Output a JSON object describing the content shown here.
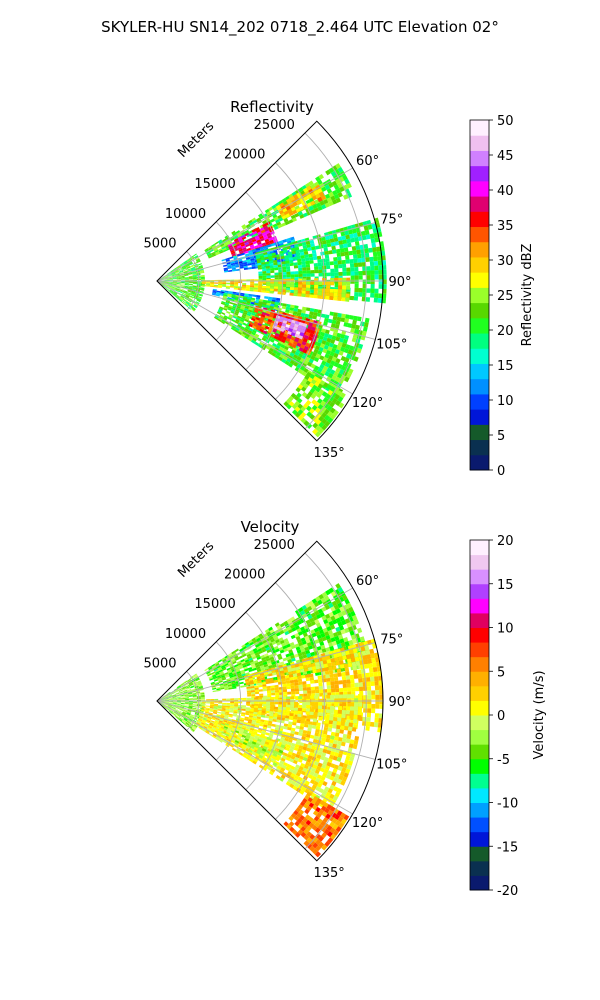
{
  "figure": {
    "suptitle": "SKYLER-HU  SN14_202  0718_2.464 UTC Elevation 02°"
  },
  "chart_data": [
    {
      "type": "heatmap",
      "subtype": "polar-sector-ppi",
      "title": "Reflectivity",
      "range_label": "Meters",
      "range_ticks": [
        "5000",
        "10000",
        "15000",
        "20000",
        "25000"
      ],
      "range_max": 27000,
      "azimuth_range_deg": [
        45,
        135
      ],
      "azimuth_ticks": [
        "60°",
        "75°",
        "90°",
        "105°",
        "120°",
        "135°"
      ],
      "grid": true,
      "colorbar": {
        "label": "Reflectivity dBZ",
        "min": 0,
        "max": 50,
        "ticks": [
          "0",
          "5",
          "10",
          "15",
          "20",
          "25",
          "30",
          "35",
          "40",
          "45",
          "50"
        ],
        "colors": [
          "#0a1a6e",
          "#0a3050",
          "#155a2a",
          "#0016d8",
          "#0040ff",
          "#0090ff",
          "#00c8ff",
          "#00ffd0",
          "#00ff80",
          "#20ff20",
          "#58d800",
          "#9aff2a",
          "#ffff00",
          "#ffd000",
          "#ffa000",
          "#ff5500",
          "#ff0000",
          "#e00070",
          "#ff00ff",
          "#a020ff",
          "#d080ff",
          "#f0c0f0",
          "#fff0ff"
        ]
      },
      "echo_regions": [
        {
          "r1": 0.0,
          "r2": 0.2,
          "a1": 55,
          "a2": 130,
          "value": 22
        },
        {
          "r1": 0.25,
          "r2": 0.95,
          "a1": 57,
          "a2": 66,
          "value": 22
        },
        {
          "r1": 0.62,
          "r2": 0.82,
          "a1": 58,
          "a2": 64,
          "value": 30
        },
        {
          "r1": 0.35,
          "r2": 0.55,
          "a1": 62,
          "a2": 72,
          "value": 38
        },
        {
          "r1": 0.3,
          "r2": 0.62,
          "a1": 72,
          "a2": 82,
          "value": 12
        },
        {
          "r1": 0.45,
          "r2": 1.0,
          "a1": 74,
          "a2": 95,
          "value": 20
        },
        {
          "r1": 0.2,
          "r2": 0.85,
          "a1": 89,
          "a2": 96,
          "value": 28
        },
        {
          "r1": 0.25,
          "r2": 0.55,
          "a1": 98,
          "a2": 103,
          "value": 12
        },
        {
          "r1": 0.3,
          "r2": 0.95,
          "a1": 100,
          "a2": 122,
          "value": 22
        },
        {
          "r1": 0.45,
          "r2": 0.75,
          "a1": 104,
          "a2": 115,
          "value": 35
        },
        {
          "r1": 0.55,
          "r2": 0.68,
          "a1": 106,
          "a2": 112,
          "value": 45
        },
        {
          "r1": 0.78,
          "r2": 0.98,
          "a1": 121,
          "a2": 134,
          "value": 24
        }
      ]
    },
    {
      "type": "heatmap",
      "subtype": "polar-sector-ppi",
      "title": "Velocity",
      "range_label": "Meters",
      "range_ticks": [
        "5000",
        "10000",
        "15000",
        "20000",
        "25000"
      ],
      "range_max": 27000,
      "azimuth_range_deg": [
        45,
        135
      ],
      "azimuth_ticks": [
        "60°",
        "75°",
        "90°",
        "105°",
        "120°",
        "135°"
      ],
      "grid": true,
      "colorbar": {
        "label": "Velocity (m/s)",
        "min": -20,
        "max": 20,
        "ticks": [
          "-20",
          "-15",
          "-10",
          "-5",
          "0",
          "5",
          "10",
          "15",
          "20"
        ],
        "colors": [
          "#0a1a6e",
          "#0a3050",
          "#155a2a",
          "#0016d8",
          "#0050ff",
          "#00a0ff",
          "#00e8ff",
          "#00ff90",
          "#00ff00",
          "#60e000",
          "#a0ff40",
          "#d0ff60",
          "#ffff00",
          "#ffd000",
          "#ffb000",
          "#ff8000",
          "#ff4000",
          "#ff0000",
          "#e00060",
          "#ff00ff",
          "#b040ff",
          "#d890ff",
          "#f0c8f0",
          "#fff0ff"
        ]
      },
      "echo_regions": [
        {
          "r1": 0.0,
          "r2": 0.2,
          "a1": 55,
          "a2": 130,
          "value": -3
        },
        {
          "r1": 0.25,
          "r2": 0.95,
          "a1": 57,
          "a2": 80,
          "value": -4
        },
        {
          "r1": 0.4,
          "r2": 1.0,
          "a1": 74,
          "a2": 98,
          "value": 2
        },
        {
          "r1": 0.2,
          "r2": 0.9,
          "a1": 88,
          "a2": 122,
          "value": 1
        },
        {
          "r1": 0.3,
          "r2": 0.6,
          "a1": 108,
          "a2": 118,
          "value": -1
        },
        {
          "r1": 0.78,
          "r2": 0.98,
          "a1": 121,
          "a2": 134,
          "value": 6
        }
      ]
    }
  ]
}
